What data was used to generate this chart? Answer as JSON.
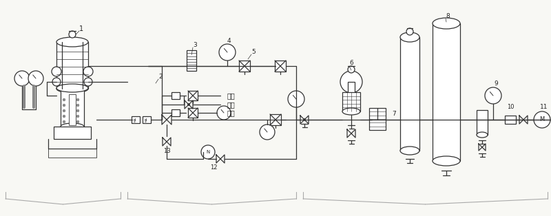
{
  "bg_color": "#f8f8f4",
  "line_color": "#333333",
  "label_color": "#222222",
  "figsize": [
    8.0,
    3.14
  ],
  "dpi": 100,
  "xlim": [
    0,
    800
  ],
  "ylim": [
    0,
    314
  ]
}
